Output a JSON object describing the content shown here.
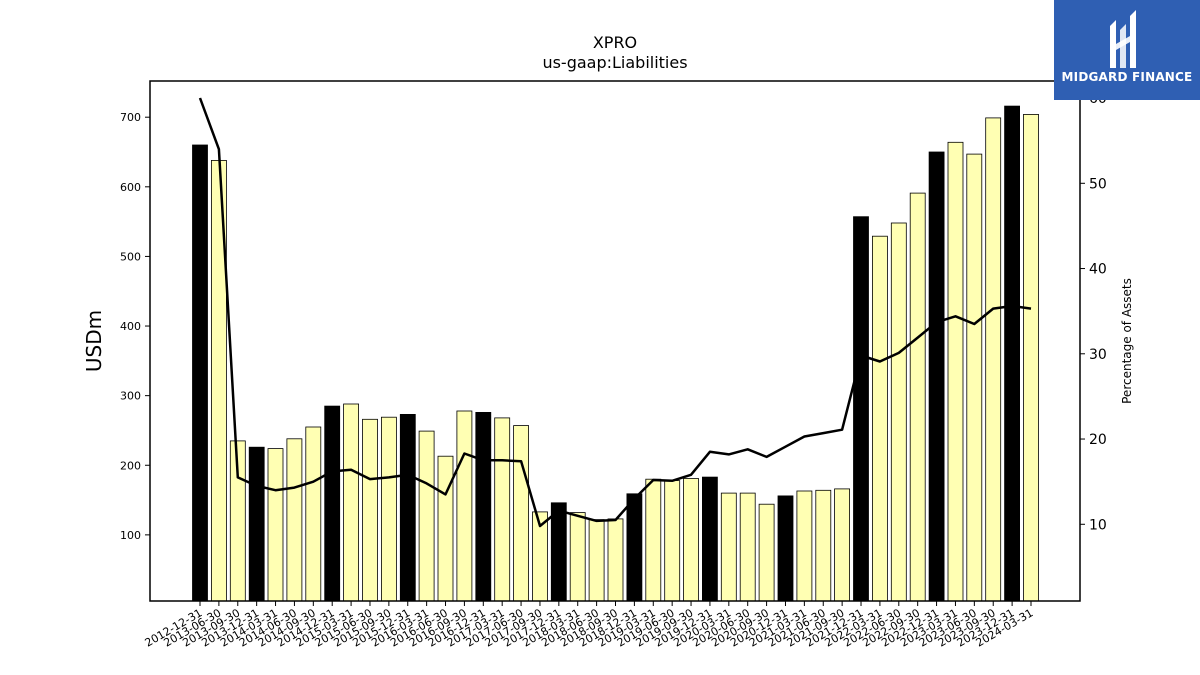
{
  "chart_data": {
    "type": "bar",
    "title": "XPRO",
    "subtitle": "us-gaap:Liabilities",
    "ylabel": "USDm",
    "y2label": "Percentage of Assets",
    "ylim": [
      5,
      752
    ],
    "y2lim": [
      1,
      62
    ],
    "yticks": [
      100,
      200,
      300,
      400,
      500,
      600,
      700
    ],
    "y2ticks": [
      10,
      20,
      30,
      40,
      50,
      60
    ],
    "grid": false,
    "legend": "none",
    "colors": {
      "year_end_bar": "#000000",
      "quarter_bar": "#ffffb3",
      "line": "#000000"
    },
    "categories": [
      "2012-12-31",
      "2013-06-30",
      "2013-09-30",
      "2013-12-31",
      "2014-03-31",
      "2014-06-30",
      "2014-09-30",
      "2014-12-31",
      "2015-03-31",
      "2015-06-30",
      "2015-09-30",
      "2015-12-31",
      "2016-03-31",
      "2016-06-30",
      "2016-09-30",
      "2016-12-31",
      "2017-03-31",
      "2017-06-30",
      "2017-09-30",
      "2017-12-31",
      "2018-03-31",
      "2018-06-30",
      "2018-09-30",
      "2018-12-31",
      "2019-03-31",
      "2019-06-30",
      "2019-09-30",
      "2019-12-31",
      "2020-03-31",
      "2020-06-30",
      "2020-09-30",
      "2020-12-31",
      "2021-03-31",
      "2021-06-30",
      "2021-09-30",
      "2021-12-31",
      "2022-03-31",
      "2022-06-30",
      "2022-09-30",
      "2022-12-31",
      "2023-03-31",
      "2023-06-30",
      "2023-09-30",
      "2023-12-31",
      "2024-03-31"
    ],
    "series": [
      {
        "type": "bar",
        "values": [
          660,
          638,
          235,
          226,
          224,
          238,
          255,
          285,
          288,
          266,
          269,
          273,
          249,
          213,
          278,
          276,
          268,
          257,
          133,
          146,
          132,
          122,
          123,
          159,
          180,
          178,
          181,
          183,
          160,
          160,
          144,
          156,
          163,
          164,
          166,
          557,
          529,
          548,
          591,
          650,
          664,
          647,
          699,
          716,
          704
        ],
        "year_end": [
          true,
          false,
          false,
          true,
          false,
          false,
          false,
          true,
          false,
          false,
          false,
          true,
          false,
          false,
          false,
          true,
          false,
          false,
          false,
          true,
          false,
          false,
          false,
          true,
          false,
          false,
          false,
          true,
          false,
          false,
          false,
          true,
          false,
          false,
          false,
          true,
          false,
          false,
          false,
          true,
          false,
          false,
          false,
          true,
          false
        ]
      },
      {
        "type": "line",
        "axis": "right",
        "values": [
          60,
          54,
          15.5,
          14.5,
          14,
          14.3,
          15,
          16.2,
          16.4,
          15.3,
          15.5,
          15.8,
          14.8,
          13.5,
          18.3,
          17.5,
          17.5,
          17.4,
          9.8,
          11.6,
          11,
          10.4,
          10.5,
          13,
          15.2,
          15.1,
          15.8,
          18.5,
          18.2,
          18.8,
          17.9,
          19.1,
          20.3,
          20.7,
          21.1,
          29.8,
          29.1,
          30.1,
          31.9,
          33.7,
          34.4,
          33.5,
          35.3,
          35.6,
          35.3
        ]
      }
    ]
  },
  "logo": {
    "text": "MIDGARD FINANCE"
  }
}
